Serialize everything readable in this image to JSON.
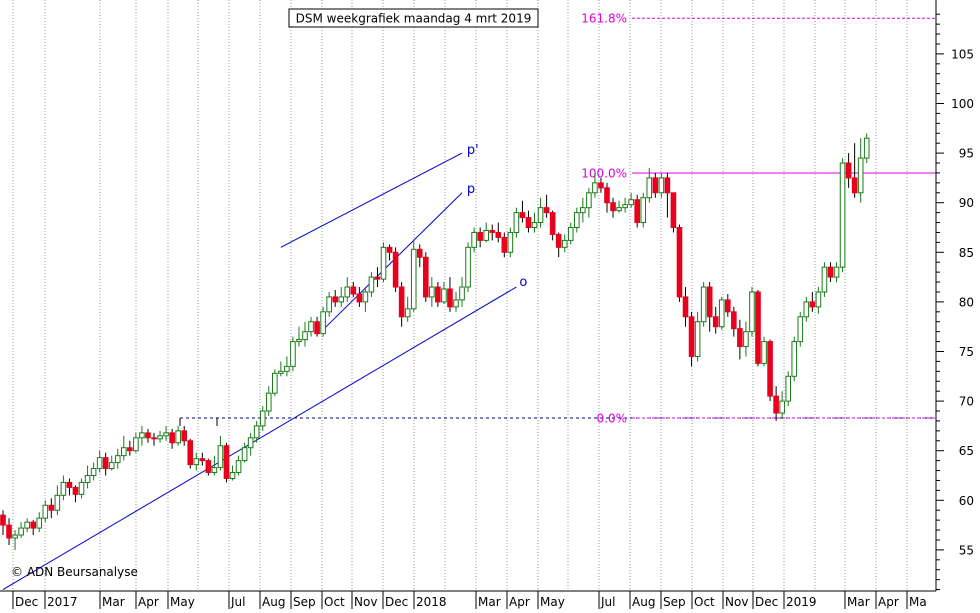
{
  "chart_data": {
    "type": "candlestick",
    "title": "DSM weekgrafiek maandag 4 mrt 2019",
    "watermark": "© ADN Beursanalyse",
    "y_axis": {
      "ticks": [
        "55",
        "60",
        "65",
        "70",
        "75",
        "80",
        "85",
        "90",
        "95",
        "100",
        "105"
      ],
      "range": [
        50.5,
        110
      ],
      "side": "right"
    },
    "x_axis": {
      "labels": [
        "Dec",
        "2017",
        "Mar",
        "Apr",
        "May",
        "Jul",
        "Aug",
        "Sep",
        "Oct",
        "Nov",
        "Dec",
        "2018",
        "Mar",
        "Apr",
        "May",
        "Jul",
        "Aug",
        "Sep",
        "Oct",
        "Nov",
        "Dec",
        "2019",
        "Mar",
        "Apr",
        "Ma"
      ]
    },
    "grid": "vertical dotted",
    "colors": {
      "up": "#1a7a1a",
      "down": "#e8001c",
      "trendline": "#0000cc",
      "fib": "#e000e0",
      "support": "#000088",
      "text": "#000000"
    },
    "fib_levels": [
      {
        "label": "161.8%",
        "value": 108.6
      },
      {
        "label": "100.0%",
        "value": 93.0
      },
      {
        "label": "0.0%",
        "value": 68.3
      }
    ],
    "support_level": 68.3,
    "annotations": [
      {
        "text": "p'",
        "x": 76.8,
        "y": 94.9
      },
      {
        "text": "p",
        "x": 76.8,
        "y": 91.0
      },
      {
        "text": "o",
        "x": 85.5,
        "y": 81.6
      }
    ],
    "trendlines": [
      {
        "name": "upper-channel",
        "x1": 46,
        "y1": 85.5,
        "x2": 76,
        "y2": 95
      },
      {
        "name": "lower-channel",
        "x1": 53,
        "y1": 77.2,
        "x2": 76,
        "y2": 91
      },
      {
        "name": "long-term-support",
        "x1": 0,
        "y1": 51,
        "x2": 85,
        "y2": 81.5
      }
    ],
    "candles": [
      [
        58.5,
        57.5,
        59.0,
        56.5
      ],
      [
        57.5,
        56.2,
        58.2,
        55.5
      ],
      [
        56.2,
        56.5,
        57.0,
        55.0
      ],
      [
        56.5,
        57.2,
        57.8,
        56.2
      ],
      [
        57.2,
        57.8,
        58.2,
        56.8
      ],
      [
        57.8,
        57.2,
        58.0,
        56.5
      ],
      [
        57.2,
        58.2,
        58.8,
        56.8
      ],
      [
        58.2,
        59.5,
        60.0,
        57.8
      ],
      [
        59.5,
        59.0,
        60.2,
        58.2
      ],
      [
        59.0,
        60.5,
        61.5,
        58.5
      ],
      [
        60.5,
        61.8,
        62.5,
        60.0
      ],
      [
        61.8,
        61.3,
        62.2,
        60.5
      ],
      [
        61.3,
        60.6,
        61.5,
        59.8
      ],
      [
        60.6,
        61.8,
        62.2,
        60.2
      ],
      [
        61.8,
        62.5,
        63.5,
        61.2
      ],
      [
        62.5,
        63.2,
        63.8,
        62.0
      ],
      [
        63.2,
        64.3,
        65.0,
        62.8
      ],
      [
        64.3,
        63.2,
        64.8,
        62.5
      ],
      [
        63.2,
        63.8,
        64.5,
        63.0
      ],
      [
        63.8,
        64.5,
        65.2,
        63.2
      ],
      [
        64.5,
        65.3,
        66.5,
        64.0
      ],
      [
        65.3,
        65.0,
        66.0,
        64.5
      ],
      [
        65.0,
        66.3,
        66.8,
        64.8
      ],
      [
        66.3,
        66.8,
        67.5,
        65.5
      ],
      [
        66.8,
        66.3,
        67.2,
        65.8
      ],
      [
        66.3,
        66.2,
        66.8,
        65.5
      ],
      [
        66.2,
        66.5,
        67.0,
        65.8
      ],
      [
        66.5,
        66.8,
        67.5,
        66.0
      ],
      [
        66.8,
        65.8,
        67.2,
        65.2
      ],
      [
        65.8,
        67.0,
        67.5,
        65.5
      ],
      [
        67.0,
        66.0,
        67.5,
        65.5
      ],
      [
        66.0,
        63.6,
        66.2,
        63.2
      ],
      [
        63.6,
        64.2,
        64.8,
        63.0
      ],
      [
        64.2,
        64.0,
        64.8,
        63.5
      ],
      [
        64.0,
        62.8,
        64.2,
        62.5
      ],
      [
        62.8,
        63.3,
        64.5,
        62.5
      ],
      [
        63.3,
        65.5,
        66.5,
        63.0
      ],
      [
        65.5,
        62.2,
        65.8,
        61.8
      ],
      [
        62.2,
        62.8,
        63.5,
        62.0
      ],
      [
        62.8,
        64.0,
        64.5,
        62.5
      ],
      [
        64.0,
        65.3,
        65.8,
        63.8
      ],
      [
        65.3,
        66.3,
        66.8,
        64.5
      ],
      [
        66.3,
        67.5,
        68.0,
        65.8
      ],
      [
        67.5,
        69.0,
        69.5,
        67.0
      ],
      [
        69.0,
        70.8,
        71.5,
        68.5
      ],
      [
        70.8,
        72.8,
        73.2,
        70.5
      ],
      [
        72.8,
        73.0,
        74.0,
        72.5
      ],
      [
        73.0,
        73.5,
        74.5,
        72.5
      ],
      [
        73.5,
        76.0,
        76.5,
        73.0
      ],
      [
        76.0,
        76.2,
        77.5,
        75.5
      ],
      [
        76.2,
        77.0,
        78.0,
        75.5
      ],
      [
        77.0,
        78.0,
        78.5,
        76.5
      ],
      [
        78.0,
        76.8,
        78.5,
        76.5
      ],
      [
        76.8,
        79.0,
        79.5,
        76.5
      ],
      [
        79.0,
        80.5,
        81.0,
        78.5
      ],
      [
        80.5,
        80.0,
        81.2,
        79.5
      ],
      [
        80.0,
        80.5,
        81.5,
        79.5
      ],
      [
        80.5,
        81.5,
        82.5,
        80.0
      ],
      [
        81.5,
        80.8,
        82.0,
        80.5
      ],
      [
        80.8,
        80.0,
        81.5,
        79.5
      ],
      [
        80.0,
        81.0,
        81.5,
        79.0
      ],
      [
        81.0,
        82.5,
        83.0,
        80.5
      ],
      [
        82.5,
        82.3,
        83.5,
        81.5
      ],
      [
        82.3,
        85.5,
        86.0,
        82.0
      ],
      [
        85.5,
        85.0,
        85.8,
        84.2
      ],
      [
        85.0,
        81.5,
        85.5,
        81.0
      ],
      [
        81.5,
        78.5,
        82.0,
        77.5
      ],
      [
        78.5,
        79.3,
        80.5,
        78.0
      ],
      [
        79.3,
        85.3,
        86.3,
        79.0
      ],
      [
        85.3,
        84.5,
        85.8,
        83.5
      ],
      [
        84.5,
        80.5,
        85.0,
        80.0
      ],
      [
        80.5,
        81.5,
        82.5,
        79.5
      ],
      [
        81.5,
        80.0,
        82.0,
        79.5
      ],
      [
        80.0,
        81.3,
        82.0,
        79.8
      ],
      [
        81.3,
        79.5,
        82.5,
        79.0
      ],
      [
        79.5,
        80.2,
        81.0,
        79.0
      ],
      [
        80.2,
        81.5,
        82.5,
        79.5
      ],
      [
        81.5,
        85.5,
        86.0,
        81.0
      ],
      [
        85.5,
        87.0,
        87.5,
        85.0
      ],
      [
        87.0,
        86.2,
        87.5,
        85.5
      ],
      [
        86.2,
        87.2,
        88.0,
        86.0
      ],
      [
        87.2,
        87.0,
        87.8,
        86.2
      ],
      [
        87.0,
        86.5,
        88.0,
        86.0
      ],
      [
        86.5,
        85.0,
        87.0,
        84.5
      ],
      [
        85.0,
        87.0,
        87.5,
        84.5
      ],
      [
        87.0,
        89.0,
        89.5,
        86.5
      ],
      [
        89.0,
        88.5,
        90.2,
        88.0
      ],
      [
        88.5,
        87.5,
        89.2,
        87.0
      ],
      [
        87.5,
        88.0,
        89.0,
        87.0
      ],
      [
        88.0,
        89.5,
        90.5,
        87.5
      ],
      [
        89.5,
        89.0,
        90.8,
        88.5
      ],
      [
        89.0,
        86.8,
        89.2,
        86.2
      ],
      [
        86.8,
        85.5,
        87.0,
        84.5
      ],
      [
        85.5,
        86.2,
        86.8,
        85.0
      ],
      [
        86.2,
        87.5,
        88.0,
        85.8
      ],
      [
        87.5,
        89.0,
        89.5,
        87.0
      ],
      [
        89.0,
        89.5,
        90.5,
        88.0
      ],
      [
        89.5,
        91.0,
        91.5,
        88.5
      ],
      [
        91.0,
        92.0,
        93.0,
        90.5
      ],
      [
        92.0,
        91.5,
        92.5,
        91.0
      ],
      [
        91.5,
        90.0,
        92.0,
        89.0
      ],
      [
        90.0,
        89.2,
        90.5,
        88.5
      ],
      [
        89.2,
        89.5,
        90.2,
        89.0
      ],
      [
        89.5,
        89.8,
        90.5,
        89.0
      ],
      [
        89.8,
        90.3,
        91.0,
        89.5
      ],
      [
        90.3,
        88.0,
        90.8,
        87.5
      ],
      [
        88.0,
        90.5,
        91.0,
        87.5
      ],
      [
        90.5,
        92.5,
        93.5,
        90.0
      ],
      [
        92.5,
        91.0,
        93.0,
        90.5
      ],
      [
        91.0,
        92.5,
        93.0,
        90.5
      ],
      [
        92.5,
        91.0,
        93.0,
        88.5
      ],
      [
        91.0,
        87.5,
        91.0,
        87.0
      ],
      [
        87.5,
        80.5,
        87.8,
        80.0
      ],
      [
        80.5,
        78.5,
        81.5,
        77.5
      ],
      [
        78.5,
        74.5,
        79.0,
        73.5
      ],
      [
        74.5,
        78.0,
        79.0,
        74.0
      ],
      [
        78.0,
        81.5,
        82.0,
        77.5
      ],
      [
        81.5,
        78.5,
        82.0,
        77.0
      ],
      [
        78.5,
        77.5,
        79.5,
        76.8
      ],
      [
        77.5,
        80.2,
        80.5,
        77.2
      ],
      [
        80.2,
        79.0,
        80.8,
        78.5
      ],
      [
        79.0,
        77.3,
        79.5,
        76.5
      ],
      [
        77.3,
        75.5,
        78.2,
        74.2
      ],
      [
        75.5,
        77.0,
        78.0,
        74.5
      ],
      [
        77.0,
        81.0,
        81.5,
        76.5
      ],
      [
        81.0,
        73.8,
        81.2,
        73.5
      ],
      [
        73.8,
        76.0,
        76.5,
        73.5
      ],
      [
        76.0,
        70.5,
        76.2,
        70.0
      ],
      [
        70.5,
        68.8,
        71.5,
        68.0
      ],
      [
        68.8,
        70.0,
        71.0,
        68.2
      ],
      [
        70.0,
        72.5,
        73.0,
        69.5
      ],
      [
        72.5,
        76.0,
        76.5,
        72.0
      ],
      [
        76.0,
        78.5,
        79.0,
        75.5
      ],
      [
        78.5,
        80.0,
        80.5,
        78.0
      ],
      [
        80.0,
        79.5,
        81.0,
        79.0
      ],
      [
        79.5,
        81.0,
        81.5,
        78.8
      ],
      [
        81.0,
        83.5,
        84.0,
        80.5
      ],
      [
        83.5,
        82.5,
        84.0,
        82.0
      ],
      [
        82.5,
        83.5,
        84.0,
        82.0
      ],
      [
        83.5,
        94.0,
        94.5,
        83.0
      ],
      [
        94.0,
        92.5,
        95.0,
        91.5
      ],
      [
        92.5,
        91.0,
        96.0,
        90.5
      ],
      [
        91.0,
        94.5,
        96.5,
        90.0
      ],
      [
        94.5,
        96.5,
        97.0,
        94.0
      ]
    ]
  }
}
